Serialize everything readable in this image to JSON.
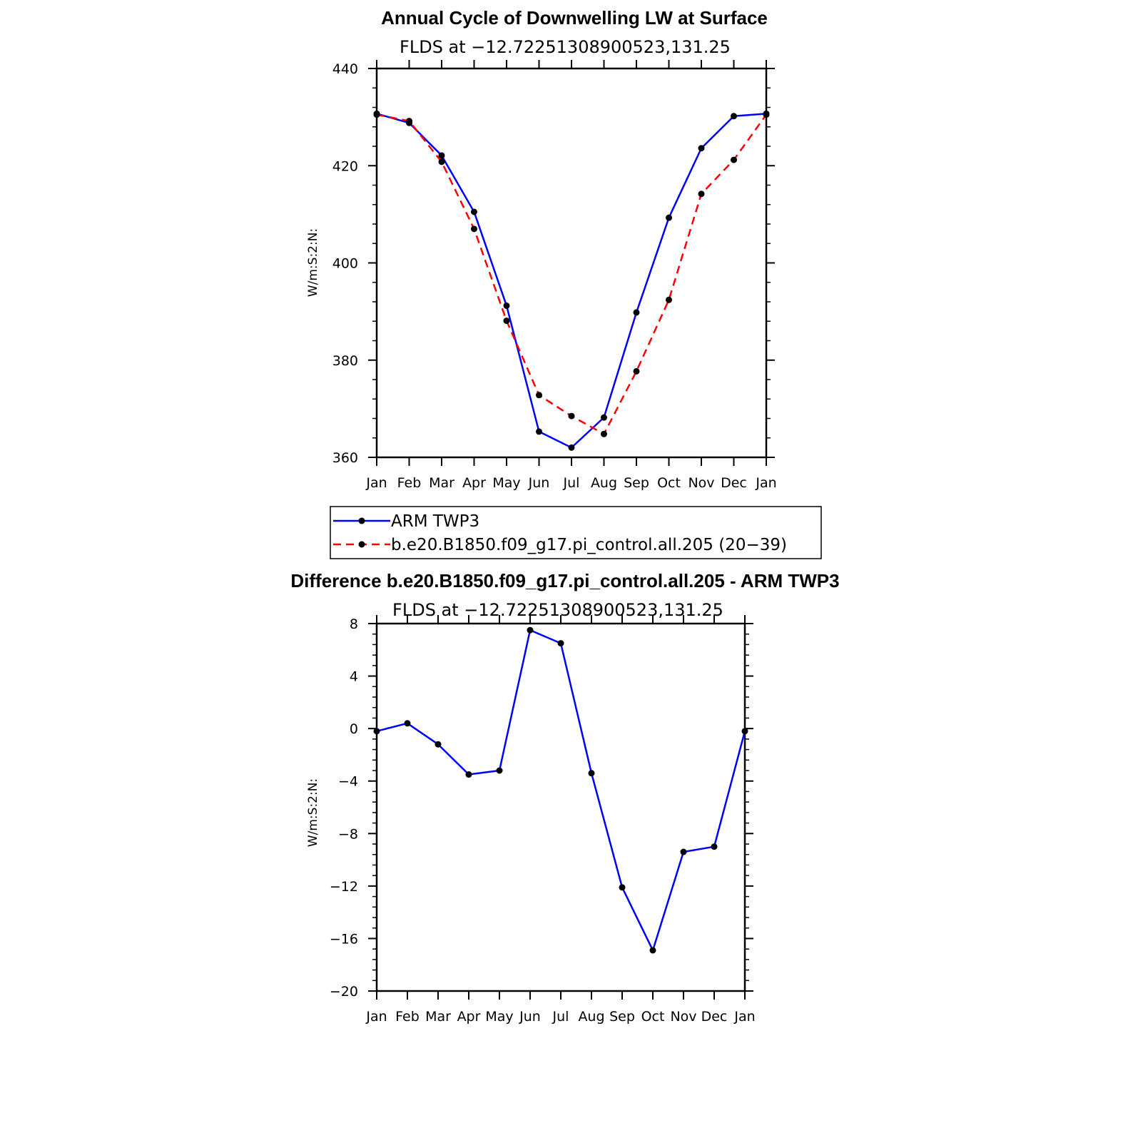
{
  "chart_data": [
    {
      "type": "line",
      "title": "Annual Cycle of Downwelling LW at Surface",
      "subtitle": "FLDS at −12.72251308900523,131.25",
      "ylabel": "W/m:S:2:N:",
      "categories": [
        "Jan",
        "Feb",
        "Mar",
        "Apr",
        "May",
        "Jun",
        "Jul",
        "Aug",
        "Sep",
        "Oct",
        "Nov",
        "Dec",
        "Jan"
      ],
      "ylim": [
        360,
        440
      ],
      "yticks": [
        360,
        380,
        400,
        420,
        440
      ],
      "series": [
        {
          "name": "ARM TWP3",
          "color": "#0000ff",
          "dash": "solid",
          "values": [
            430.7,
            428.8,
            422.1,
            410.5,
            391.2,
            365.3,
            362.0,
            368.2,
            389.8,
            409.3,
            423.6,
            430.2,
            430.7
          ]
        },
        {
          "name": "b.e20.B1850.f09_g17.pi_control.all.205 (20−39)",
          "color": "#ff0000",
          "dash": "dashed",
          "values": [
            430.5,
            429.2,
            420.8,
            407.0,
            388.1,
            372.8,
            368.5,
            364.8,
            377.7,
            392.4,
            414.2,
            421.2,
            430.5
          ]
        }
      ],
      "legend": "below"
    },
    {
      "type": "line",
      "title": "Difference b.e20.B1850.f09_g17.pi_control.all.205 - ARM TWP3",
      "subtitle": "FLDS at −12.72251308900523,131.25",
      "ylabel": "W/m:S:2:N:",
      "categories": [
        "Jan",
        "Feb",
        "Mar",
        "Apr",
        "May",
        "Jun",
        "Jul",
        "Aug",
        "Sep",
        "Oct",
        "Nov",
        "Dec",
        "Jan"
      ],
      "ylim": [
        -20,
        8
      ],
      "yticks": [
        -20,
        -16,
        -12,
        -8,
        -4,
        0,
        4,
        8
      ],
      "ytick_labels": [
        "−20",
        "−16",
        "−12",
        "−8",
        "−4",
        "0",
        "4",
        "8"
      ],
      "series": [
        {
          "color": "#0000ff",
          "dash": "solid",
          "values": [
            -0.2,
            0.4,
            -1.2,
            -3.5,
            -3.2,
            7.5,
            6.5,
            -3.4,
            -12.1,
            -16.9,
            -9.4,
            -9.0,
            -0.2
          ]
        }
      ]
    }
  ]
}
